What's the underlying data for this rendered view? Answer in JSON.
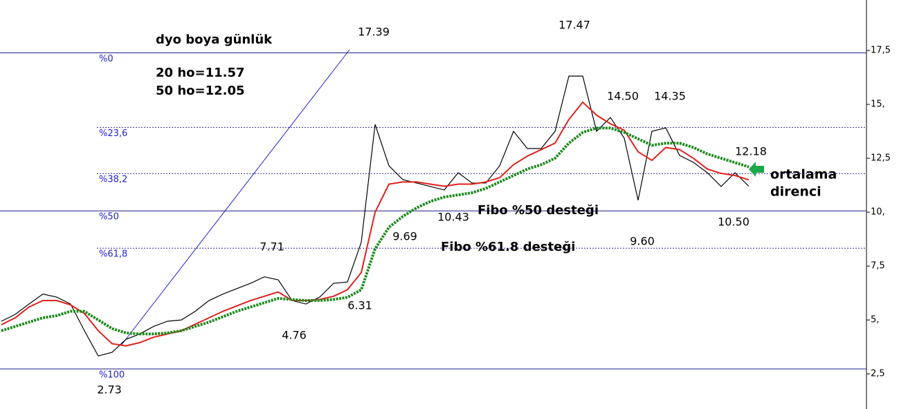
{
  "chart_data": {
    "type": "line",
    "title": "dyo boya günlük",
    "subtitle": [
      "20 ho=11.57",
      "50 ho=12.05"
    ],
    "ylim": [
      0.87,
      19.84
    ],
    "yticks": [
      {
        "value": 2.5,
        "label": "2,5"
      },
      {
        "value": 5,
        "label": "5,"
      },
      {
        "value": 7.5,
        "label": "7,5"
      },
      {
        "value": 10,
        "label": "10,"
      },
      {
        "value": 12.5,
        "label": "12,5"
      },
      {
        "value": 15,
        "label": "15,"
      },
      {
        "value": 17.5,
        "label": "17,5"
      }
    ],
    "series": [
      {
        "color": "#000000",
        "values": [
          4.94,
          5.26,
          5.74,
          6.2,
          6.06,
          5.74,
          4.5,
          3.33,
          3.5,
          4.1,
          4.35,
          4.7,
          4.94,
          5.0,
          5.4,
          5.9,
          6.2,
          6.45,
          6.7,
          7.0,
          6.86,
          5.9,
          5.74,
          6.06,
          6.7,
          6.76,
          8.6,
          14.07,
          12.15,
          11.51,
          11.35,
          11.19,
          11.03,
          11.83,
          11.35,
          11.35,
          12.15,
          13.75,
          12.95,
          12.95,
          13.75,
          16.31,
          16.31,
          13.75,
          14.39,
          13.43,
          10.55,
          13.75,
          13.91,
          12.63,
          12.31,
          11.83,
          11.19,
          11.83,
          11.2
        ]
      },
      {
        "color": "#e0201c",
        "values": [
          4.78,
          5.1,
          5.6,
          5.9,
          5.9,
          5.7,
          5.3,
          4.5,
          3.9,
          3.8,
          3.95,
          4.2,
          4.35,
          4.5,
          4.8,
          5.1,
          5.4,
          5.65,
          5.9,
          6.1,
          6.3,
          5.9,
          5.9,
          5.95,
          6.1,
          6.4,
          7.2,
          10.0,
          11.3,
          11.4,
          11.4,
          11.3,
          11.2,
          11.3,
          11.3,
          11.4,
          11.6,
          12.2,
          12.6,
          12.9,
          13.2,
          14.3,
          15.1,
          14.5,
          14.1,
          13.8,
          12.8,
          12.4,
          13.0,
          12.9,
          12.5,
          12.0,
          11.8,
          11.7,
          11.5
        ]
      },
      {
        "color": "#1e8a1e",
        "values": [
          4.5,
          4.7,
          4.9,
          5.1,
          5.2,
          5.4,
          5.4,
          5.0,
          4.6,
          4.4,
          4.35,
          4.35,
          4.4,
          4.5,
          4.7,
          4.9,
          5.15,
          5.4,
          5.6,
          5.8,
          6.0,
          5.95,
          5.9,
          5.9,
          5.95,
          6.05,
          6.4,
          8.3,
          9.3,
          9.8,
          10.2,
          10.5,
          10.7,
          10.8,
          10.9,
          11.1,
          11.4,
          11.7,
          12.0,
          12.2,
          12.5,
          13.2,
          13.7,
          13.9,
          13.9,
          13.7,
          13.4,
          13.1,
          13.2,
          13.2,
          13.0,
          12.7,
          12.5,
          12.3,
          12.1
        ]
      }
    ],
    "fib_levels": [
      {
        "label": "%0",
        "value": 17.39
      },
      {
        "label": "%23,6",
        "value": 13.93
      },
      {
        "label": "%38,2",
        "value": 11.79
      },
      {
        "label": "%50",
        "value": 10.06
      },
      {
        "label": "%61,8",
        "value": 8.33
      },
      {
        "label": "%100",
        "value": 2.73
      }
    ],
    "annotations": [
      "17.39",
      "17.47",
      "14.50",
      "14.35",
      "12.18",
      "10.50",
      "9.60",
      "9.69",
      "10.43",
      "7.71",
      "4.76",
      "6.31",
      "2.73",
      "Fibo %50 desteği",
      "Fibo %61.8 desteği",
      "ortalama",
      "direnci"
    ]
  }
}
